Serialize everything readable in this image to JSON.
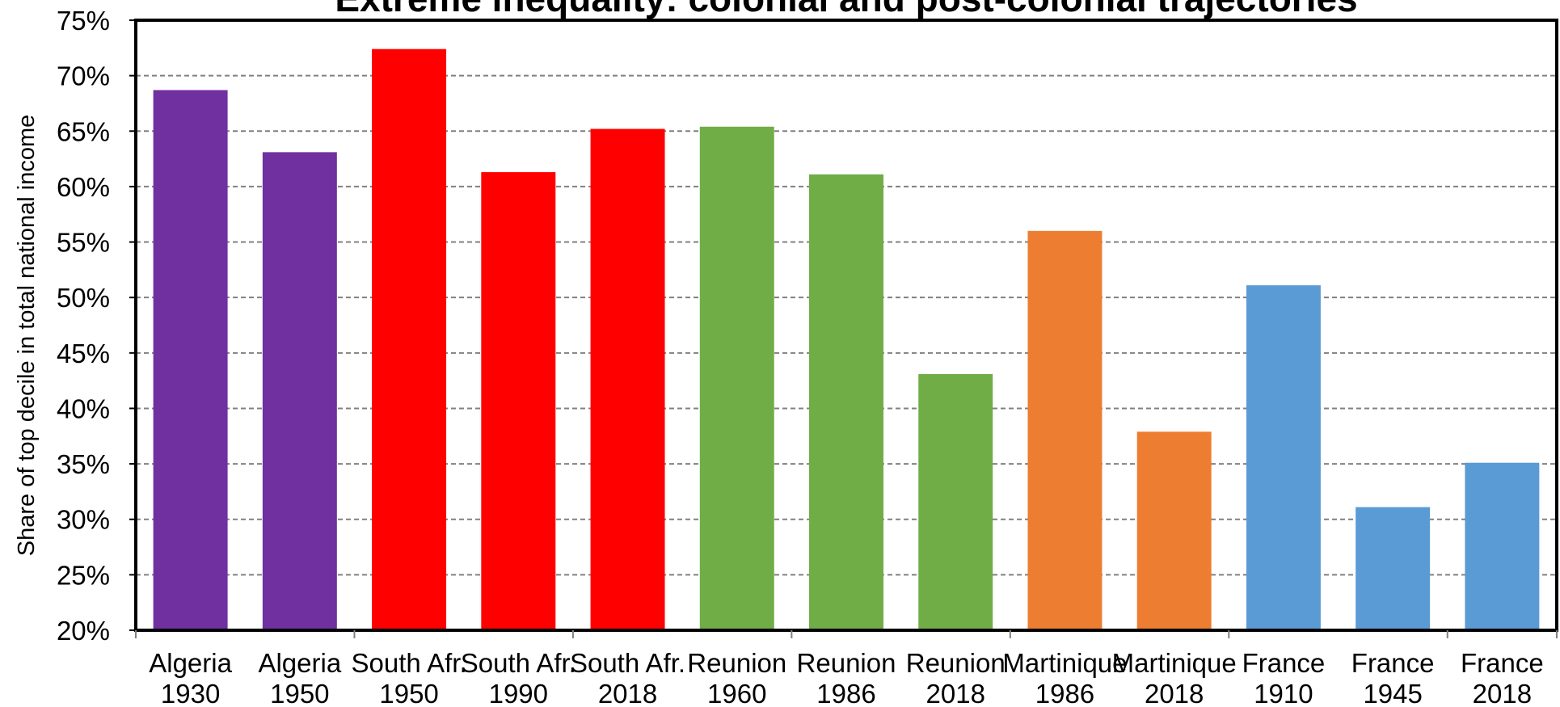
{
  "chart_data": {
    "type": "bar",
    "title": "Extreme inequality: colonial and post-colonial trajectories",
    "xlabel": "",
    "ylabel": "Share of top decile in total national income",
    "ylim": [
      20,
      75
    ],
    "yticks": [
      "20%",
      "25%",
      "30%",
      "35%",
      "40%",
      "45%",
      "50%",
      "55%",
      "60%",
      "65%",
      "70%",
      "75%"
    ],
    "grid": true,
    "categories": [
      [
        "Algeria",
        "1930"
      ],
      [
        "Algeria",
        "1950"
      ],
      [
        "South Afr.",
        "1950"
      ],
      [
        "South Afr.",
        "1990"
      ],
      [
        "South Afr.",
        "2018"
      ],
      [
        "Reunion",
        "1960"
      ],
      [
        "Reunion",
        "1986"
      ],
      [
        "Reunion",
        "2018"
      ],
      [
        "Martinique",
        "1986"
      ],
      [
        "Martinique",
        "2018"
      ],
      [
        "France",
        "1910"
      ],
      [
        "France",
        "1945"
      ],
      [
        "France",
        "2018"
      ]
    ],
    "values": [
      68.7,
      63.1,
      72.4,
      61.3,
      65.2,
      65.4,
      61.1,
      43.1,
      56.0,
      37.9,
      51.1,
      31.1,
      35.1
    ],
    "colors": [
      "#7030a0",
      "#7030a0",
      "#ff0000",
      "#ff0000",
      "#ff0000",
      "#70ad47",
      "#70ad47",
      "#70ad47",
      "#ed7d31",
      "#ed7d31",
      "#5b9bd5",
      "#5b9bd5",
      "#5b9bd5"
    ]
  }
}
